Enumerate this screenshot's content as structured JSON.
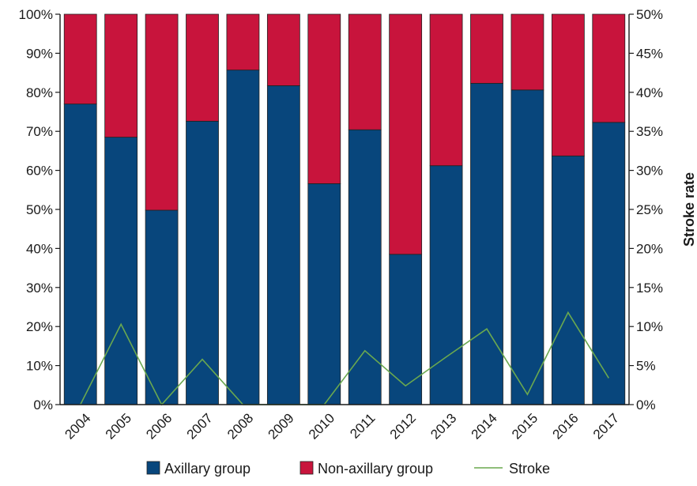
{
  "chart_data": {
    "type": "bar",
    "stacked": true,
    "percent_stacked": true,
    "categories": [
      "2004",
      "2005",
      "2006",
      "2007",
      "2008",
      "2009",
      "2010",
      "2011",
      "2012",
      "2013",
      "2014",
      "2015",
      "2016",
      "2017"
    ],
    "series": [
      {
        "name": "Axillary group",
        "color": "#08467c",
        "values": [
          77,
          68.5,
          49.8,
          72.6,
          85.7,
          81.7,
          56.6,
          70.4,
          38.5,
          61.2,
          82.3,
          80.6,
          63.7,
          72.3
        ]
      },
      {
        "name": "Non-axillary group",
        "color": "#c8143c",
        "values": [
          23,
          31.5,
          50.2,
          27.4,
          14.3,
          18.3,
          43.4,
          29.6,
          61.5,
          38.8,
          17.7,
          19.4,
          36.3,
          27.7
        ]
      }
    ],
    "line_series": {
      "name": "Stroke",
      "color": "#6aa84f",
      "axis": "right",
      "values": [
        0,
        10.3,
        0,
        5.8,
        0,
        0,
        0,
        6.9,
        2.4,
        6.1,
        9.7,
        1.3,
        11.8,
        3.4
      ]
    },
    "y_left": {
      "range": [
        0,
        100
      ],
      "ticks": [
        "0%",
        "10%",
        "20%",
        "30%",
        "40%",
        "50%",
        "60%",
        "70%",
        "80%",
        "90%",
        "100%"
      ]
    },
    "y_right": {
      "label": "Stroke rate",
      "range": [
        0,
        50
      ],
      "ticks": [
        "0%",
        "5%",
        "10%",
        "15%",
        "20%",
        "25%",
        "30%",
        "35%",
        "40%",
        "45%",
        "50%"
      ]
    },
    "legend": {
      "position": "bottom",
      "items": [
        "Axillary group",
        "Non-axillary group",
        "Stroke"
      ]
    },
    "grid": false
  }
}
